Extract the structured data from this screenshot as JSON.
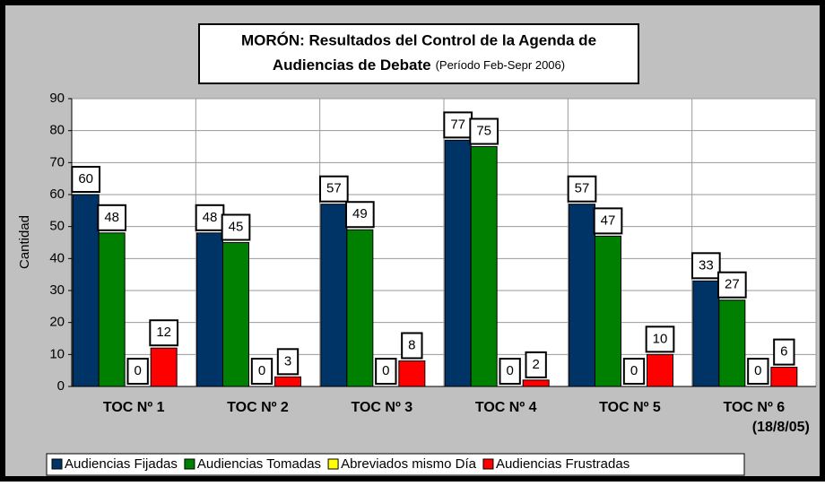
{
  "chart_data": {
    "type": "bar",
    "title": [
      "MORÓN: Resultados del Control de la Agenda de",
      "Audiencias de Debate"
    ],
    "subtitle": "(Período Feb-Sepr 2006)",
    "y_label": "Cantidad",
    "categories": [
      "TOC Nº 1",
      "TOC Nº 2",
      "TOC Nº 3",
      "TOC Nº 4",
      "TOC Nº 5",
      "TOC Nº 6 (18/8/05)"
    ],
    "series": [
      {
        "name": "Audiencias Fijadas",
        "color": "#003366",
        "values": [
          60,
          48,
          57,
          77,
          57,
          33
        ]
      },
      {
        "name": "Audiencias Tomadas",
        "color": "#008000",
        "values": [
          48,
          45,
          49,
          75,
          47,
          27
        ]
      },
      {
        "name": "Abreviados mismo Día",
        "color": "#ffff00",
        "values": [
          0,
          0,
          0,
          0,
          0,
          0
        ]
      },
      {
        "name": "Audiencias Frustradas",
        "color": "#ff0000",
        "values": [
          12,
          3,
          8,
          2,
          10,
          6
        ]
      }
    ],
    "ylim": [
      0,
      90
    ],
    "yticks": [
      0,
      10,
      20,
      30,
      40,
      50,
      60,
      70,
      80,
      90
    ],
    "grid": true,
    "legend": "bottom"
  }
}
